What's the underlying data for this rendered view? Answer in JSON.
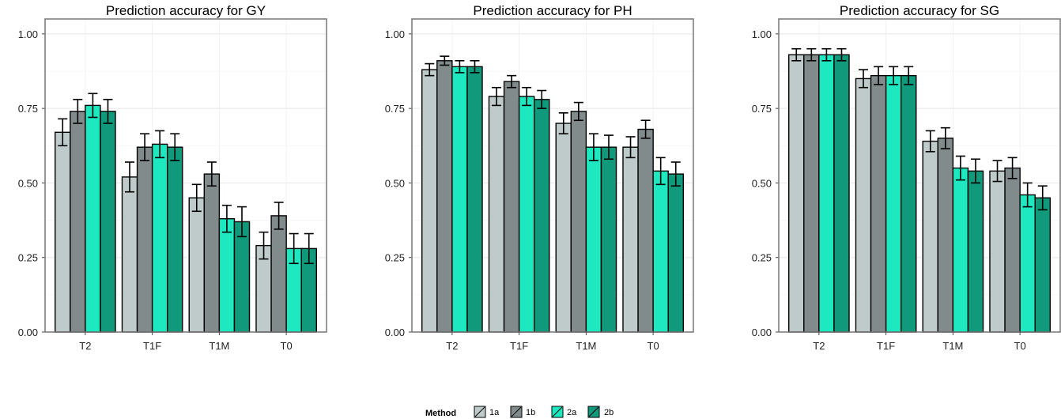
{
  "chart_data": [
    {
      "type": "bar",
      "title": "Prediction accuracy for GY",
      "categories": [
        "T2",
        "T1F",
        "T1M",
        "T0"
      ],
      "ylim": [
        0,
        1.05
      ],
      "yticks": [
        "0.00",
        "0.25",
        "0.50",
        "0.75",
        "1.00"
      ],
      "grid": true,
      "series": [
        {
          "name": "1a",
          "values": [
            0.67,
            0.52,
            0.45,
            0.29
          ],
          "err": [
            0.045,
            0.05,
            0.045,
            0.045
          ]
        },
        {
          "name": "1b",
          "values": [
            0.74,
            0.62,
            0.53,
            0.39
          ],
          "err": [
            0.04,
            0.045,
            0.04,
            0.045
          ]
        },
        {
          "name": "2a",
          "values": [
            0.76,
            0.63,
            0.38,
            0.28
          ],
          "err": [
            0.04,
            0.045,
            0.045,
            0.05
          ]
        },
        {
          "name": "2b",
          "values": [
            0.74,
            0.62,
            0.37,
            0.28
          ],
          "err": [
            0.04,
            0.045,
            0.05,
            0.05
          ]
        }
      ]
    },
    {
      "type": "bar",
      "title": "Prediction accuracy for PH",
      "categories": [
        "T2",
        "T1F",
        "T1M",
        "T0"
      ],
      "ylim": [
        0,
        1.05
      ],
      "yticks": [
        "0.00",
        "0.25",
        "0.50",
        "0.75",
        "1.00"
      ],
      "grid": true,
      "series": [
        {
          "name": "1a",
          "values": [
            0.88,
            0.79,
            0.7,
            0.62
          ],
          "err": [
            0.02,
            0.03,
            0.035,
            0.035
          ]
        },
        {
          "name": "1b",
          "values": [
            0.91,
            0.84,
            0.74,
            0.68
          ],
          "err": [
            0.015,
            0.02,
            0.03,
            0.03
          ]
        },
        {
          "name": "2a",
          "values": [
            0.89,
            0.79,
            0.62,
            0.54
          ],
          "err": [
            0.02,
            0.03,
            0.045,
            0.045
          ]
        },
        {
          "name": "2b",
          "values": [
            0.89,
            0.78,
            0.62,
            0.53
          ],
          "err": [
            0.02,
            0.03,
            0.04,
            0.04
          ]
        }
      ]
    },
    {
      "type": "bar",
      "title": "Prediction accuracy for SG",
      "categories": [
        "T2",
        "T1F",
        "T1M",
        "T0"
      ],
      "ylim": [
        0,
        1.05
      ],
      "yticks": [
        "0.00",
        "0.25",
        "0.50",
        "0.75",
        "1.00"
      ],
      "grid": true,
      "series": [
        {
          "name": "1a",
          "values": [
            0.93,
            0.85,
            0.64,
            0.54
          ],
          "err": [
            0.02,
            0.03,
            0.035,
            0.035
          ]
        },
        {
          "name": "1b",
          "values": [
            0.93,
            0.86,
            0.65,
            0.55
          ],
          "err": [
            0.02,
            0.03,
            0.035,
            0.035
          ]
        },
        {
          "name": "2a",
          "values": [
            0.93,
            0.86,
            0.55,
            0.46
          ],
          "err": [
            0.02,
            0.03,
            0.04,
            0.04
          ]
        },
        {
          "name": "2b",
          "values": [
            0.93,
            0.86,
            0.54,
            0.45
          ],
          "err": [
            0.02,
            0.03,
            0.04,
            0.04
          ]
        }
      ]
    }
  ],
  "legend": {
    "title": "Method",
    "items": [
      {
        "label": "1a",
        "color": "#bfcbca"
      },
      {
        "label": "1b",
        "color": "#828b8b"
      },
      {
        "label": "2a",
        "color": "#1ee8c0"
      },
      {
        "label": "2b",
        "color": "#10997a"
      }
    ],
    "placement": "bottom-center"
  }
}
